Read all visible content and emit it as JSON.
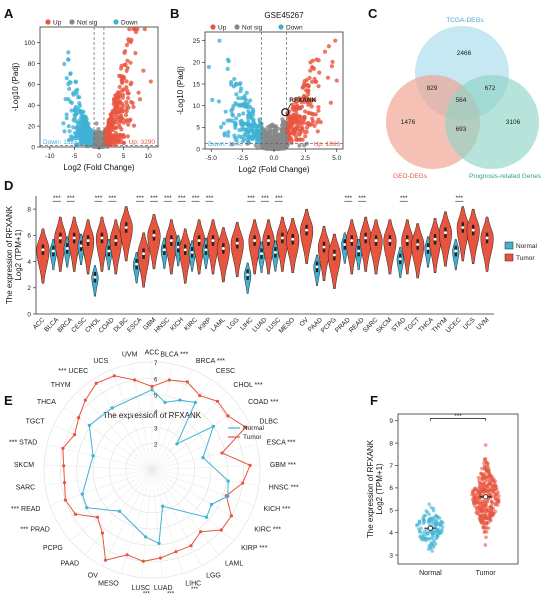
{
  "colors": {
    "up": "#e8553f",
    "down": "#3fb2d4",
    "notsig": "#888888",
    "normal": "#3fb2d4",
    "tumor": "#e8553f",
    "venn_tcga": "#a6dced",
    "venn_geo": "#f0a08c",
    "venn_prog": "#8fd4c6"
  },
  "panels": {
    "A": "A",
    "B": "B",
    "C": "C",
    "D": "D",
    "E": "E",
    "F": "F"
  },
  "chart_data": [
    {
      "panel": "A",
      "type": "scatter",
      "title": "",
      "legend": [
        {
          "label": "Up",
          "color": "#e8553f"
        },
        {
          "label": "Not sig",
          "color": "#888888"
        },
        {
          "label": "Down",
          "color": "#3fb2d4"
        }
      ],
      "xlabel": "Log2 (Fold Change)",
      "ylabel": "-Log10 (Padj)",
      "xticks": [
        "-10",
        "-5",
        "0",
        "5",
        "10"
      ],
      "yticks": [
        "0",
        "20",
        "40",
        "60",
        "80",
        "100"
      ],
      "xlim": [
        -12,
        12
      ],
      "ylim": [
        0,
        115
      ],
      "annotations": {
        "down": "Down: 1525",
        "up": "Up: 3290"
      }
    },
    {
      "panel": "B",
      "type": "scatter",
      "title": "GSE45267",
      "legend": [
        {
          "label": "Up",
          "color": "#e8553f"
        },
        {
          "label": "Not sig",
          "color": "#888888"
        },
        {
          "label": "Down",
          "color": "#3fb2d4"
        }
      ],
      "xlabel": "Log2 (Fold Change)",
      "ylabel": "-Log10 (Padj)",
      "xticks": [
        "-5.0",
        "-2.5",
        "0.0",
        "2.5",
        "5.0"
      ],
      "yticks": [
        "0",
        "5",
        "10",
        "15",
        "20",
        "25"
      ],
      "xlim": [
        -5.5,
        5.5
      ],
      "ylim": [
        0,
        27
      ],
      "highlight": {
        "label": "RFXANK",
        "x": 0.9,
        "y": 8.5
      },
      "annotations": {
        "down": "Down: 1648",
        "up": "Up: 1863"
      }
    },
    {
      "panel": "C",
      "type": "venn",
      "sets": [
        "TCGA-DEGs",
        "GEO-DEGs",
        "Prognosis-related Genes"
      ],
      "regions": {
        "tcga_only": 2466,
        "geo_only": 1476,
        "prog_only": 3106,
        "tcga_geo": 829,
        "tcga_prog": 672,
        "geo_prog": 693,
        "all": 564
      }
    },
    {
      "panel": "D",
      "type": "violin",
      "ylabel": "The expression of RFXANK",
      "ylabel2": "Log2 (TPM+1)",
      "ylim": [
        0,
        9
      ],
      "yticks": [
        "0",
        "2",
        "4",
        "6",
        "8"
      ],
      "legend": [
        "Normal",
        "Tumor"
      ],
      "categories": [
        "ACC",
        "BLCA",
        "BRCA",
        "CESC",
        "CHOL",
        "COAD",
        "DLBC",
        "ESCA",
        "GBM",
        "HNSC",
        "KICH",
        "KIRC",
        "KIRP",
        "LAML",
        "LGG",
        "LIHC",
        "LUAD",
        "LUSC",
        "MESO",
        "OV",
        "PAAD",
        "PCPG",
        "PRAD",
        "READ",
        "SARC",
        "SKCM",
        "STAD",
        "TGCT",
        "THCA",
        "THYM",
        "UCEC",
        "UCS",
        "UVM"
      ],
      "normal_median": [
        null,
        4.8,
        5.0,
        5.2,
        2.8,
        4.8,
        null,
        3.8,
        null,
        4.9,
        5.1,
        4.7,
        4.9,
        null,
        null,
        3.0,
        4.6,
        4.7,
        null,
        null,
        3.6,
        null,
        5.3,
        4.8,
        null,
        null,
        4.2,
        null,
        5.0,
        null,
        4.8,
        null,
        null
      ],
      "tumor_median": [
        4.9,
        5.8,
        5.8,
        5.6,
        5.8,
        5.6,
        6.6,
        4.6,
        6.0,
        5.6,
        4.9,
        5.6,
        5.6,
        5.0,
        5.4,
        5.6,
        5.6,
        5.8,
        5.7,
        6.4,
        5.1,
        4.5,
        5.6,
        5.8,
        5.6,
        5.6,
        5.6,
        5.3,
        5.7,
        6.2,
        6.6,
        6.4,
        5.8
      ],
      "signif": [
        "",
        "***",
        "***",
        "",
        "***",
        "***",
        "",
        "***",
        "***",
        "***",
        "***",
        "***",
        "***",
        "",
        "",
        "***",
        "***",
        "***",
        "",
        "",
        "",
        "",
        "***",
        "***",
        "",
        "",
        "***",
        "",
        "",
        "",
        "***",
        "",
        ""
      ]
    },
    {
      "panel": "E",
      "type": "radar",
      "title": "The expression of RFXANK",
      "legend": [
        "Normal",
        "Tumor"
      ],
      "rticks": [
        "2",
        "3",
        "4",
        "5",
        "6",
        "7"
      ],
      "categories": [
        "ACC",
        "BLCA",
        "BRCA",
        "CESC",
        "CHOL",
        "COAD",
        "DLBC",
        "ESCA",
        "GBM",
        "HNSC",
        "KICH",
        "KIRC",
        "KIRP",
        "LAML",
        "LGG",
        "LIHC",
        "LUAD",
        "LUSC",
        "MESO",
        "OV",
        "PAAD",
        "PCPG",
        "PRAD",
        "READ",
        "SARC",
        "SKCM",
        "STAD",
        "TGCT",
        "THCA",
        "THYM",
        "UCEC",
        "UCS",
        "UVM"
      ],
      "labels": [
        "ACC",
        "BLCA ***",
        "BRCA ***",
        "CESC",
        "CHOL ***",
        "COAD ***",
        "DLBC",
        "ESCA ***",
        "GBM ***",
        "HNSC ***",
        "KICH ***",
        "KIRC ***",
        "KIRP ***",
        "LAML",
        "LGG",
        "LIHC",
        "LUAD",
        "LUSC",
        "MESO",
        "OV",
        "PAAD",
        "PCPG",
        "*** PRAD",
        "*** READ",
        "SARC",
        "SKCM",
        "*** STAD",
        "TGCT",
        "THCA",
        "THYM",
        "*** UCEC",
        "UCS",
        "UVM"
      ],
      "signif_marks": {
        "LIHC": "***",
        "LUAD": "***",
        "LUSC": "***"
      },
      "tumor": [
        5.5,
        6.0,
        6.2,
        5.8,
        6.2,
        6.1,
        6.7,
        4.8,
        6.4,
        6.0,
        5.2,
        6.0,
        6.0,
        5.2,
        5.6,
        5.6,
        5.8,
        6.0,
        5.8,
        6.6,
        5.3,
        4.8,
        5.8,
        6.0,
        5.8,
        5.8,
        6.0,
        5.6,
        5.9,
        6.3,
        6.7,
        6.6,
        6.0
      ],
      "normal": [
        5.3,
        4.6,
        5.0,
        5.3,
        2.6,
        5.0,
        null,
        3.6,
        null,
        5.1,
        5.3,
        4.6,
        4.8,
        null,
        null,
        2.7,
        4.9,
        4.5,
        null,
        null,
        3.6,
        null,
        5.0,
        4.9,
        null,
        null,
        4.1,
        null,
        5.1,
        null,
        4.9,
        null,
        null
      ]
    },
    {
      "panel": "F",
      "type": "scatter",
      "title": "",
      "ylabel": "The expression of RFXANK",
      "ylabel2": "Log2 (TPM+1)",
      "categories": [
        "Normal",
        "Tumor"
      ],
      "yticks": [
        "3",
        "4",
        "5",
        "6",
        "7",
        "8",
        "9"
      ],
      "ylim": [
        2.6,
        9.3
      ],
      "medians": [
        4.2,
        5.6
      ],
      "signif": "***"
    }
  ]
}
